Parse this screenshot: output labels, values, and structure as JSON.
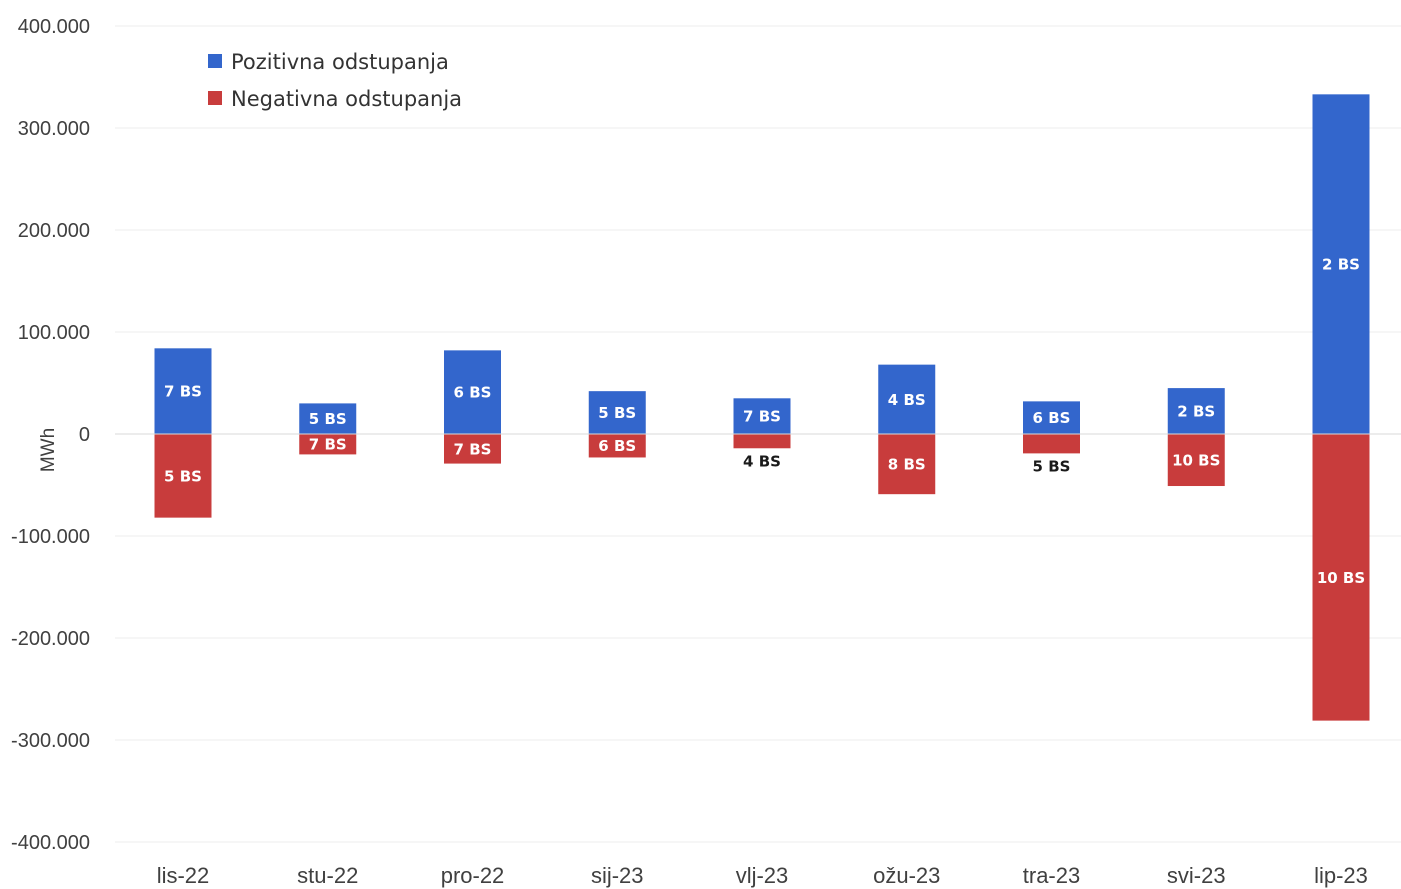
{
  "chart_data": {
    "type": "bar",
    "ylabel": "MWh",
    "ylim": [
      -400000,
      400000
    ],
    "yticks": [
      400000,
      300000,
      200000,
      100000,
      0,
      -100000,
      -200000,
      -300000,
      -400000
    ],
    "ytick_labels": [
      "400.000",
      "300.000",
      "200.000",
      "100.000",
      "0",
      "-100.000",
      "-200.000",
      "-300.000",
      "-400.000"
    ],
    "categories": [
      "lis-22",
      "stu-22",
      "pro-22",
      "sij-23",
      "vlj-23",
      "ožu-23",
      "tra-23",
      "svi-23",
      "lip-23"
    ],
    "legend_position": "top-left",
    "grid": true,
    "series": [
      {
        "name": "Pozitivna odstupanja",
        "color": "#3366cc",
        "values": [
          84000,
          30000,
          82000,
          42000,
          35000,
          68000,
          32000,
          45000,
          333000
        ],
        "labels": [
          "7 BS",
          "5 BS",
          "6 BS",
          "5 BS",
          "7 BS",
          "4 BS",
          "6 BS",
          "2 BS",
          "2 BS"
        ]
      },
      {
        "name": "Negativna odstupanja",
        "color": "#c83c3c",
        "values": [
          -82000,
          -20000,
          -29000,
          -23000,
          -14000,
          -59000,
          -19000,
          -51000,
          -281000
        ],
        "labels": [
          "5 BS",
          "7 BS",
          "7 BS",
          "6 BS",
          "4 BS",
          "8 BS",
          "5 BS",
          "10 BS",
          "10 BS"
        ]
      }
    ]
  }
}
